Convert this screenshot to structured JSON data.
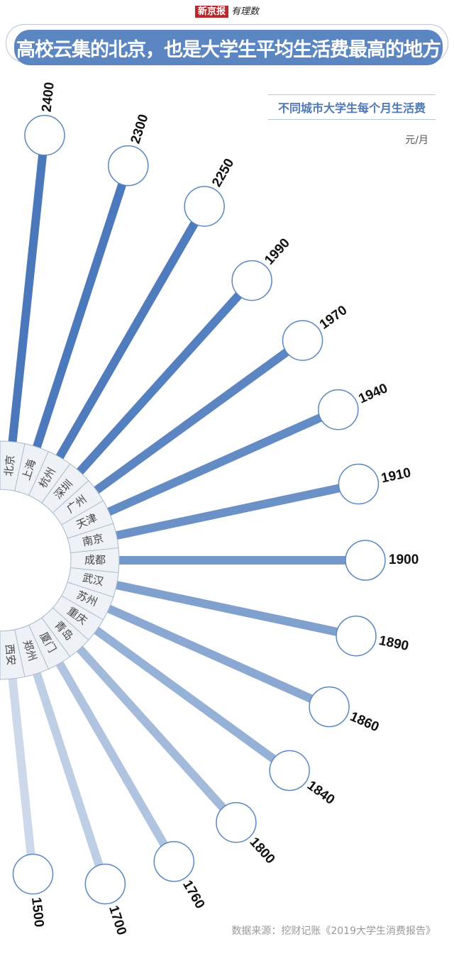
{
  "header": {
    "logo_brand": "新京报",
    "logo_column": "有理数"
  },
  "title": "高校云集的北京，也是大学生平均生活费最高的地方",
  "chart_data": {
    "type": "radial-bar",
    "title": "不同城市大学生每个月生活费",
    "unit": "元/月",
    "categories": [
      "北京",
      "上海",
      "杭州",
      "深圳",
      "广州",
      "天津",
      "南京",
      "成都",
      "武汉",
      "苏州",
      "重庆",
      "青岛",
      "厦门",
      "郑州",
      "西安"
    ],
    "values": [
      2400,
      2300,
      2250,
      1990,
      1970,
      1940,
      1910,
      1900,
      1890,
      1860,
      1840,
      1800,
      1760,
      1700,
      1500
    ],
    "colors": {
      "high": "#4a78bb",
      "low": "#cdd9ea",
      "ring": "#eef2f7",
      "ring_line": "#a9b8cc"
    }
  },
  "source": "数据来源：挖财记账《2019大学生消费报告》"
}
